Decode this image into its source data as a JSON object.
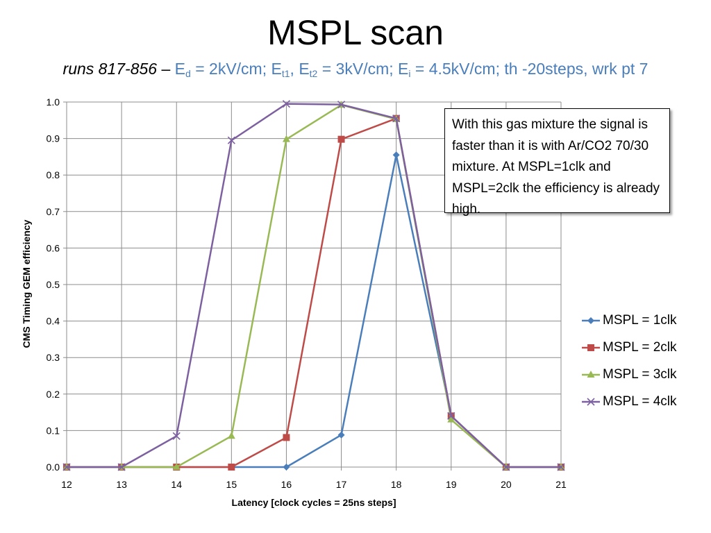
{
  "slide": {
    "title": "MSPL scan",
    "subtitle": {
      "runs": "runs 817-856",
      "dash": " – ",
      "ed_E": "E",
      "ed_sub": "d",
      "ed_val": " = 2kV/cm; ",
      "et1_E": "E",
      "et1_sub": "t1",
      "comma": ", ",
      "et2_E": "E",
      "et2_sub": "t2",
      "et_val": " = 3kV/cm; ",
      "ei_E": "E",
      "ei_sub": "i",
      "ei_val": " = 4.5kV/cm; th -20steps, wrk pt 7"
    },
    "note": "With this gas mixture the signal is faster than it is with Ar/CO2 70/30 mixture. At MSPL=1clk and MSPL=2clk the efficiency is already high."
  },
  "chart_data": {
    "type": "line",
    "xlabel": "Latency [clock cycles = 25ns steps]",
    "ylabel": "CMS Timing GEM efficiency",
    "x": [
      12,
      13,
      14,
      15,
      16,
      17,
      18,
      19,
      20,
      21
    ],
    "xlim": [
      12,
      21
    ],
    "ylim": [
      0,
      1
    ],
    "x_ticks": [
      "12",
      "13",
      "14",
      "15",
      "16",
      "17",
      "18",
      "19",
      "20",
      "21"
    ],
    "y_ticks": [
      "0.0",
      "0.1",
      "0.2",
      "0.3",
      "0.4",
      "0.5",
      "0.6",
      "0.7",
      "0.8",
      "0.9",
      "1.0"
    ],
    "grid": true,
    "legend_position": "right",
    "series": [
      {
        "name": "MSPL = 1clk",
        "color": "#4a7ebb",
        "marker": "diamond",
        "values": [
          0,
          0,
          0,
          0,
          0,
          0.088,
          0.855,
          0.14,
          0,
          0
        ]
      },
      {
        "name": "MSPL = 2clk",
        "color": "#be4b48",
        "marker": "square",
        "values": [
          0,
          0,
          0,
          0,
          0.081,
          0.898,
          0.955,
          0.14,
          0,
          0
        ]
      },
      {
        "name": "MSPL = 3clk",
        "color": "#98b954",
        "marker": "triangle",
        "values": [
          0,
          0,
          0,
          0.085,
          0.898,
          0.992,
          0.953,
          0.13,
          0,
          0
        ]
      },
      {
        "name": "MSPL = 4clk",
        "color": "#7d60a0",
        "marker": "x",
        "values": [
          0,
          0,
          0.085,
          0.895,
          0.995,
          0.993,
          0.955,
          0.14,
          0,
          0
        ]
      }
    ]
  }
}
